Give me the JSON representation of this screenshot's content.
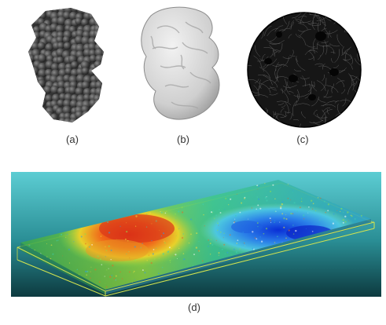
{
  "figure": {
    "panels": [
      {
        "id": "a",
        "label": "(a)"
      },
      {
        "id": "b",
        "label": "(b)"
      },
      {
        "id": "c",
        "label": "(c)"
      },
      {
        "id": "d",
        "label": "(d)"
      }
    ],
    "colors": {
      "sphere_surface": "#4a4a4a",
      "smooth_surface": "#d8d8d8",
      "disc": "#1a1a1a",
      "sea_top": "#58c9cf",
      "sea_bottom": "#0f3f44",
      "box_edge": "#c8d84a",
      "hot": "#e03a1a",
      "cold": "#1a4fd0"
    }
  }
}
